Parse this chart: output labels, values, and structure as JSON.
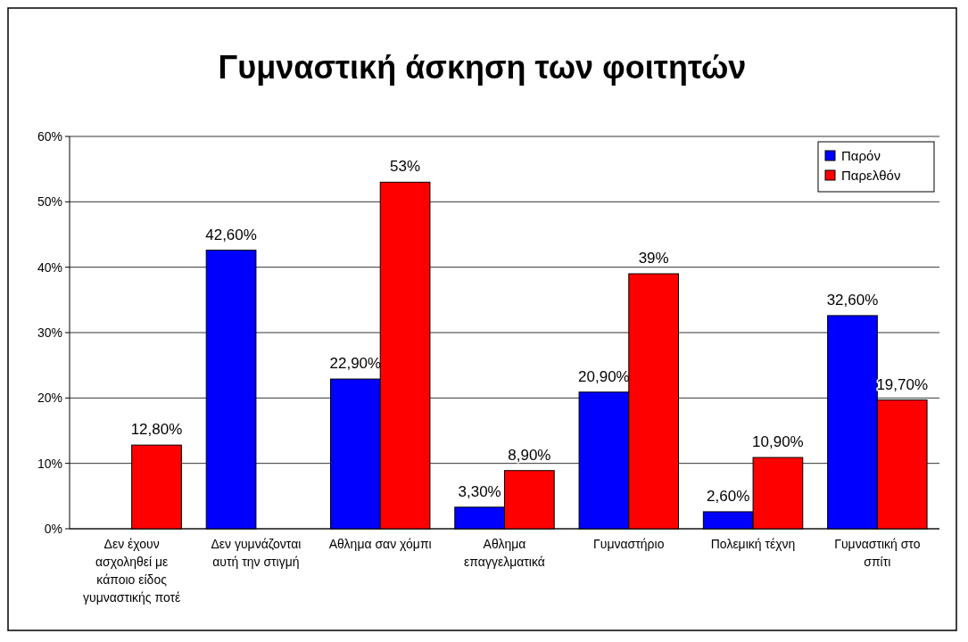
{
  "chart_data": {
    "type": "bar",
    "title": "Γυμναστική άσκηση των φοιτητών",
    "categories": [
      "Δεν έχουν ασχοληθεί με κάποιο είδος γυμναστικής ποτέ",
      "Δεν γυμνάζονται αυτή την στιγμή",
      "Αθλημα σαν χόμπι",
      "Αθλημα επαγγελματικά",
      "Γυμναστήριο",
      "Πολεμική τέχνη",
      "Γυμναστική στο σπίτι"
    ],
    "series": [
      {
        "name": "Παρόν",
        "color": "#0000ff",
        "values": [
          null,
          42.6,
          22.9,
          3.3,
          20.9,
          2.6,
          32.6
        ],
        "value_labels": [
          null,
          "42,60%",
          "22,90%",
          "3,30%",
          "20,90%",
          "2,60%",
          "32,60%"
        ]
      },
      {
        "name": "Παρελθόν",
        "color": "#ff0000",
        "values": [
          12.8,
          null,
          53,
          8.9,
          39,
          10.9,
          19.7
        ],
        "value_labels": [
          "12,80%",
          null,
          "53%",
          "8,90%",
          "39%",
          "10,90%",
          "19,70%"
        ]
      }
    ],
    "ylim": [
      0,
      60
    ],
    "yticks": [
      {
        "value": 0,
        "label": "0%"
      },
      {
        "value": 10,
        "label": "10%"
      },
      {
        "value": 20,
        "label": "20%"
      },
      {
        "value": 30,
        "label": "30%"
      },
      {
        "value": 40,
        "label": "40%"
      },
      {
        "value": 50,
        "label": "50%"
      },
      {
        "value": 60,
        "label": "60%"
      }
    ],
    "grid": "y",
    "legend": "top right"
  }
}
